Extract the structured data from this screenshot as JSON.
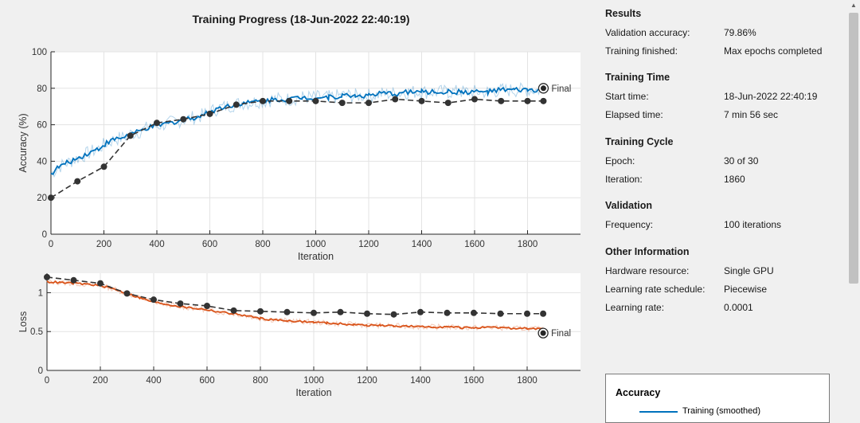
{
  "title": "Training Progress (18-Jun-2022 22:40:19)",
  "colors": {
    "train_acc": "#0072bd",
    "train_loss": "#d95319",
    "validation": "#333333"
  },
  "export_icon": "edit-pencil-icon",
  "chart_data": [
    {
      "type": "line",
      "ylabel": "Accuracy (%)",
      "xlabel": "Iteration",
      "ylim": [
        0,
        100
      ],
      "xlim": [
        0,
        2000
      ],
      "x_ticks": [
        0,
        200,
        400,
        600,
        800,
        1000,
        1200,
        1400,
        1600,
        1800
      ],
      "y_ticks": [
        0,
        20,
        40,
        60,
        80,
        100
      ],
      "grid": true,
      "final_label": "Final",
      "series": [
        {
          "role": "training-smoothed",
          "x": [
            0,
            30,
            60,
            90,
            120,
            150,
            180,
            210,
            240,
            270,
            300,
            330,
            360,
            390,
            420,
            450,
            480,
            510,
            540,
            570,
            600,
            630,
            660,
            690,
            720,
            750,
            780,
            810,
            840,
            870,
            900,
            950,
            1000,
            1050,
            1100,
            1150,
            1200,
            1250,
            1300,
            1350,
            1400,
            1450,
            1500,
            1550,
            1600,
            1650,
            1700,
            1750,
            1800,
            1860
          ],
          "values": [
            33,
            37,
            39,
            41,
            43,
            45,
            47,
            50,
            52,
            53,
            55,
            56,
            58,
            59,
            60,
            61,
            62,
            63,
            64,
            65,
            67,
            69,
            70,
            71,
            72,
            72,
            73,
            73,
            74,
            74,
            74,
            75,
            75,
            75,
            76,
            76,
            76,
            77,
            77,
            78,
            78,
            78,
            78,
            78,
            78,
            78,
            79,
            79,
            79,
            79
          ]
        },
        {
          "role": "validation",
          "x": [
            0,
            100,
            200,
            300,
            400,
            500,
            600,
            700,
            800,
            900,
            1000,
            1100,
            1200,
            1300,
            1400,
            1500,
            1600,
            1700,
            1800,
            1860
          ],
          "values": [
            20,
            29,
            37,
            54,
            61,
            63,
            66,
            71,
            73,
            73,
            73,
            72,
            72,
            74,
            73,
            72,
            74,
            73,
            73,
            73
          ]
        }
      ],
      "final_point": {
        "x": 1860,
        "y": 80
      }
    },
    {
      "type": "line",
      "ylabel": "Loss",
      "xlabel": "Iteration",
      "ylim": [
        0,
        1.25
      ],
      "xlim": [
        0,
        2000
      ],
      "x_ticks": [
        0,
        200,
        400,
        600,
        800,
        1000,
        1200,
        1400,
        1600,
        1800
      ],
      "y_ticks": [
        0,
        0.5,
        1
      ],
      "grid": true,
      "final_label": "Final",
      "series": [
        {
          "role": "training-smoothed",
          "x": [
            0,
            50,
            100,
            150,
            200,
            250,
            300,
            350,
            400,
            450,
            500,
            550,
            600,
            650,
            700,
            750,
            800,
            850,
            900,
            950,
            1000,
            1050,
            1100,
            1150,
            1200,
            1250,
            1300,
            1350,
            1400,
            1450,
            1500,
            1550,
            1600,
            1650,
            1700,
            1750,
            1800,
            1860
          ],
          "values": [
            1.14,
            1.13,
            1.12,
            1.11,
            1.09,
            1.05,
            0.99,
            0.93,
            0.88,
            0.85,
            0.82,
            0.8,
            0.78,
            0.75,
            0.73,
            0.7,
            0.67,
            0.65,
            0.64,
            0.63,
            0.62,
            0.61,
            0.6,
            0.59,
            0.58,
            0.58,
            0.57,
            0.57,
            0.56,
            0.56,
            0.56,
            0.55,
            0.55,
            0.55,
            0.55,
            0.54,
            0.54,
            0.53
          ]
        },
        {
          "role": "validation",
          "x": [
            0,
            100,
            200,
            300,
            400,
            500,
            600,
            700,
            800,
            900,
            1000,
            1100,
            1200,
            1300,
            1400,
            1500,
            1600,
            1700,
            1800,
            1860
          ],
          "values": [
            1.2,
            1.16,
            1.12,
            0.99,
            0.91,
            0.86,
            0.83,
            0.77,
            0.76,
            0.75,
            0.74,
            0.75,
            0.73,
            0.72,
            0.75,
            0.74,
            0.74,
            0.73,
            0.73,
            0.73
          ]
        }
      ],
      "final_point": {
        "x": 1860,
        "y": 0.48
      }
    }
  ],
  "info": {
    "results": {
      "heading": "Results",
      "rows": [
        {
          "label": "Validation accuracy:",
          "value": "79.86%"
        },
        {
          "label": "Training finished:",
          "value": "Max epochs completed"
        }
      ]
    },
    "time": {
      "heading": "Training Time",
      "rows": [
        {
          "label": "Start time:",
          "value": "18-Jun-2022 22:40:19"
        },
        {
          "label": "Elapsed time:",
          "value": "7 min 56 sec"
        }
      ]
    },
    "cycle": {
      "heading": "Training Cycle",
      "rows": [
        {
          "label": "Epoch:",
          "value": "30 of 30"
        },
        {
          "label": "Iteration:",
          "value": "1860"
        }
      ]
    },
    "validation": {
      "heading": "Validation",
      "rows": [
        {
          "label": "Frequency:",
          "value": "100 iterations"
        }
      ]
    },
    "other": {
      "heading": "Other Information",
      "rows": [
        {
          "label": "Hardware resource:",
          "value": "Single GPU"
        },
        {
          "label": "Learning rate schedule:",
          "value": "Piecewise"
        },
        {
          "label": "Learning rate:",
          "value": "0.0001"
        }
      ]
    }
  },
  "legend": {
    "title": "Accuracy",
    "entry_label": "Training (smoothed)"
  }
}
